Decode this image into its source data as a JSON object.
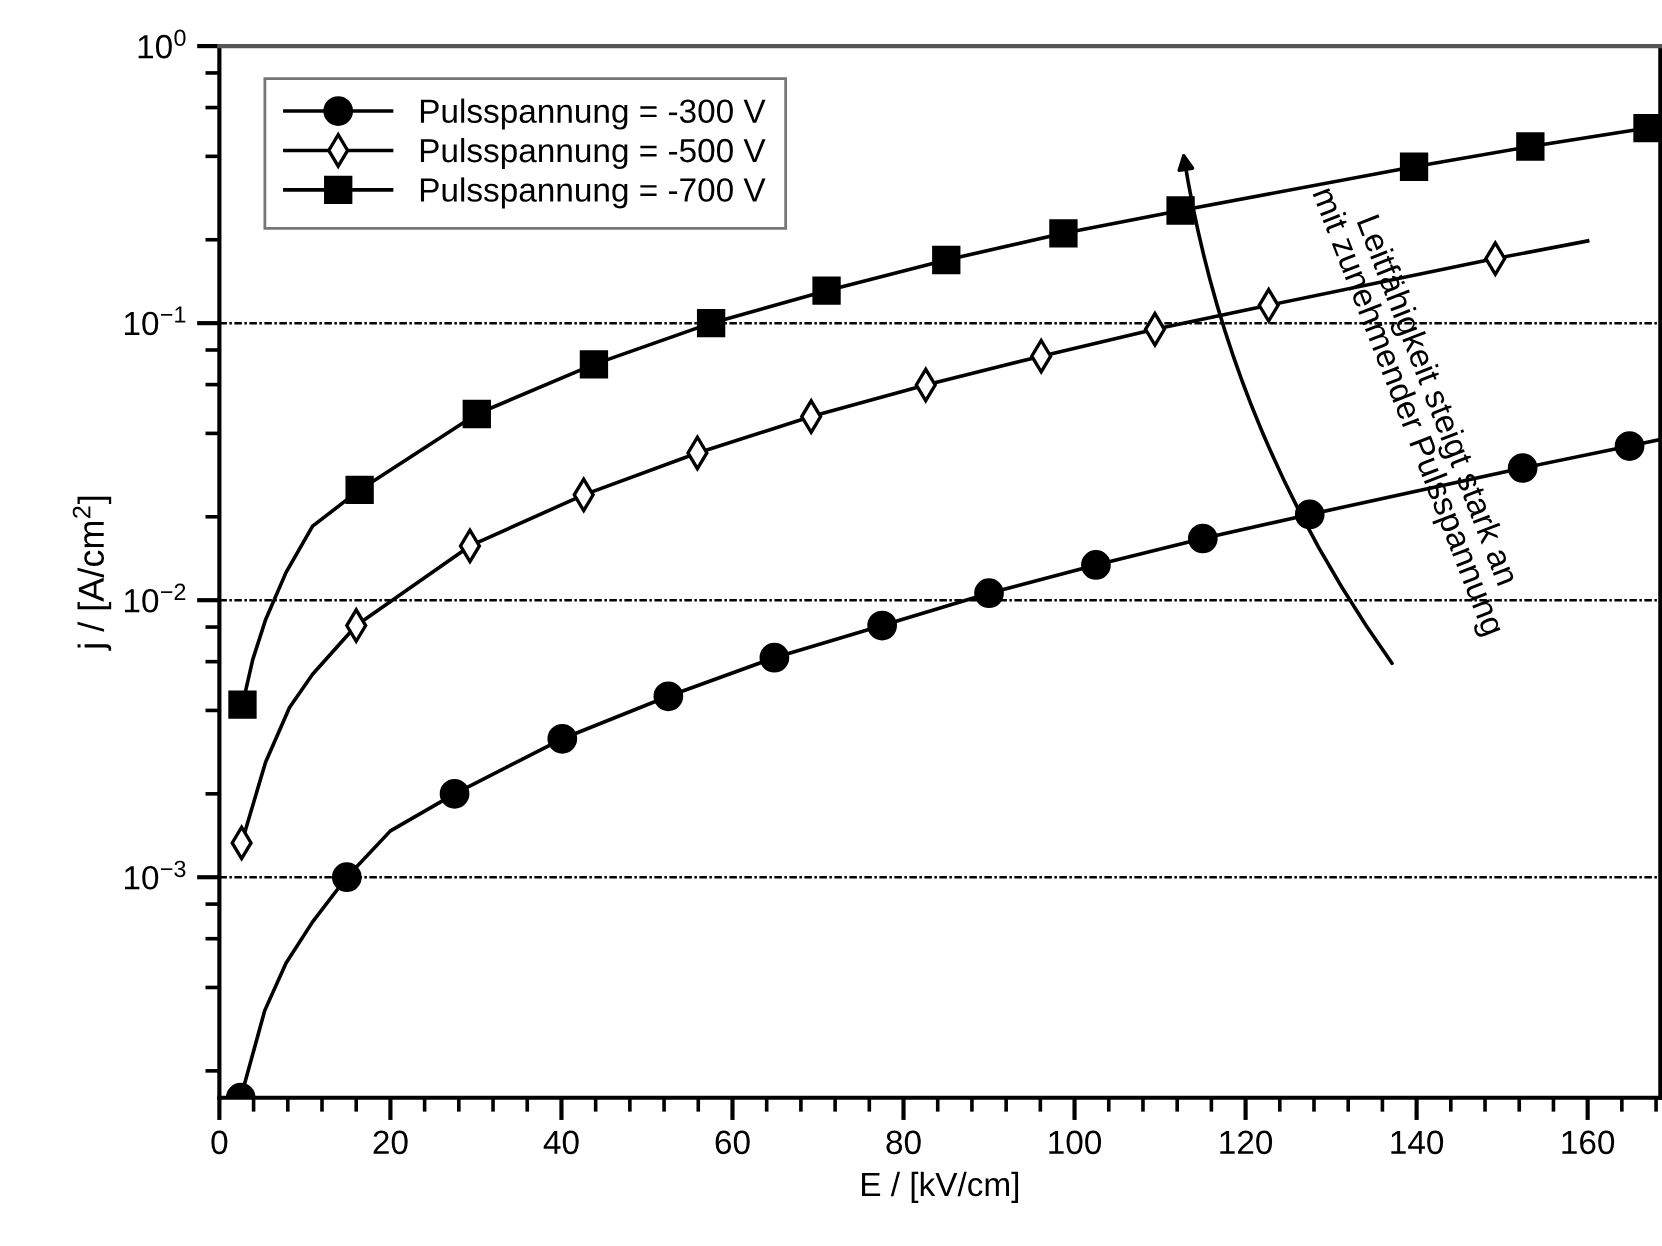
{
  "chart_data": {
    "type": "scatter",
    "xlabel": "E / [kV/cm]",
    "ylabel": "j / [A/cm$^{2}$]",
    "log": "y",
    "xlim": [
      0,
      168.5
    ],
    "ylim": [
      0.00016,
      1
    ],
    "xticks": [
      0,
      20,
      40,
      60,
      80,
      100,
      120,
      140,
      160
    ],
    "yticks": [
      {
        "value": 0.001,
        "label": "10$^{−3}$"
      },
      {
        "value": 0.01,
        "label": "10$^{−2}$"
      },
      {
        "value": 0.1,
        "label": "10$^{−1}$"
      },
      {
        "value": 1,
        "label": "10$^{0}$"
      }
    ],
    "grid": "y",
    "legend": "top left",
    "line_style": "solid",
    "annotations": [
      "Leitfähigkeit steigt stark an\nmit zunehmender Pulsspannung"
    ],
    "series": [
      {
        "type": "line",
        "color": "#000000",
        "x": [
          2.5,
          5.3,
          7.8,
          10.9,
          14.9,
          20,
          27.5,
          40.1,
          52.5,
          64.9,
          77.5,
          90.0,
          102.5,
          115,
          127.5,
          152.4,
          164.9,
          168.5
        ],
        "values": [
          0.00016,
          0.00033,
          0.00049,
          0.00069,
          0.001,
          0.00147,
          0.002,
          0.00316,
          0.0045,
          0.0062,
          0.0081,
          0.0106,
          0.0134,
          0.0167,
          0.0204,
          0.03,
          0.036,
          0.038
        ]
      },
      {
        "type": "line",
        "color": "#000000",
        "x": [
          2.6,
          5.4,
          8.2,
          10.9,
          16.0,
          29.3,
          42.6,
          55.9,
          69.2,
          82.6,
          96.1,
          109.4,
          122.7,
          149.2,
          160.0
        ],
        "values": [
          0.00133,
          0.0026,
          0.0041,
          0.0054,
          0.0081,
          0.0157,
          0.024,
          0.034,
          0.046,
          0.0598,
          0.076,
          0.095,
          0.116,
          0.171,
          0.198
        ]
      },
      {
        "type": "line",
        "color": "#000000",
        "x": [
          2.7,
          3.9,
          5.4,
          7.8,
          10.9,
          16.4,
          30.1,
          43.8,
          57.5,
          71.0,
          85.0,
          98.7,
          112.4,
          139.7,
          153.3,
          167.0
        ],
        "values": [
          0.0042,
          0.0061,
          0.0085,
          0.0126,
          0.0185,
          0.025,
          0.047,
          0.071,
          0.1,
          0.131,
          0.169,
          0.211,
          0.255,
          0.367,
          0.434,
          0.506
        ]
      },
      {
        "name": "Pulsspannung = -300 V",
        "color": "#000000",
        "marker": "circle",
        "x": [
          2.5,
          14.9,
          27.5,
          40.1,
          52.5,
          64.9,
          77.5,
          90.0,
          102.5,
          115,
          127.5,
          152.4,
          164.9
        ],
        "values": [
          0.00016,
          0.001,
          0.002,
          0.00316,
          0.0045,
          0.0062,
          0.0081,
          0.0106,
          0.0134,
          0.0167,
          0.0204,
          0.03,
          0.036
        ]
      },
      {
        "name": "Pulsspannung = -500 V",
        "color": "#000000",
        "marker": "diamond",
        "x": [
          2.6,
          16.0,
          29.3,
          42.6,
          55.9,
          69.2,
          82.6,
          96.1,
          109.4,
          122.7,
          149.2
        ],
        "values": [
          0.00133,
          0.0081,
          0.0157,
          0.024,
          0.034,
          0.046,
          0.0598,
          0.076,
          0.095,
          0.116,
          0.171
        ]
      },
      {
        "name": "Pulsspannung = -700 V",
        "color": "#000000",
        "marker": "square",
        "x": [
          2.7,
          16.4,
          30.1,
          43.8,
          57.5,
          71.0,
          85.0,
          98.7,
          112.4,
          139.7,
          153.3,
          167.0
        ],
        "values": [
          0.0042,
          0.025,
          0.047,
          0.071,
          0.1,
          0.131,
          0.169,
          0.211,
          0.255,
          0.367,
          0.434,
          0.506
        ]
      }
    ]
  }
}
